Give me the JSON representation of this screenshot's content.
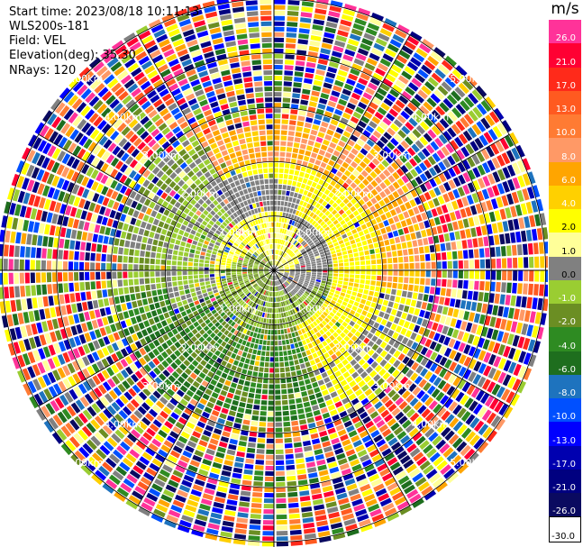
{
  "header": {
    "start_time": "Start time: 2023/08/18 10:11:13",
    "instrument": "WLS200s-181",
    "field": "Field: VEL",
    "elevation": "Elevation(deg): 35.30",
    "nrays": "NRays: 120"
  },
  "colorbar": {
    "unit": "m/s",
    "levels": [
      {
        "label": "26.0",
        "color": "#ff3399"
      },
      {
        "label": "21.0",
        "color": "#ff0033"
      },
      {
        "label": "17.0",
        "color": "#ff2a1a"
      },
      {
        "label": "13.0",
        "color": "#ff5a20"
      },
      {
        "label": "10.0",
        "color": "#ff7b33"
      },
      {
        "label": "8.0",
        "color": "#ff9966"
      },
      {
        "label": "6.0",
        "color": "#ffa500"
      },
      {
        "label": "4.0",
        "color": "#ffd000"
      },
      {
        "label": "2.0",
        "color": "#ffff00"
      },
      {
        "label": "1.0",
        "color": "#ffff99"
      },
      {
        "label": "0.0",
        "color": "#808080"
      },
      {
        "label": "-1.0",
        "color": "#9acd32"
      },
      {
        "label": "-2.0",
        "color": "#6b8e23"
      },
      {
        "label": "-4.0",
        "color": "#2e8b22"
      },
      {
        "label": "-6.0",
        "color": "#1e6e1e"
      },
      {
        "label": "-8.0",
        "color": "#1e73be"
      },
      {
        "label": "-10.0",
        "color": "#0050ff"
      },
      {
        "label": "-13.0",
        "color": "#0000ff"
      },
      {
        "label": "-17.0",
        "color": "#0000b0"
      },
      {
        "label": "-21.0",
        "color": "#000080"
      },
      {
        "label": "-26.0",
        "color": "#0a0a60"
      },
      {
        "label": "-30.0",
        "color": "#ffffff"
      }
    ]
  },
  "chart_data": {
    "type": "heatmap",
    "projection": "polar-ppi",
    "field": "VEL",
    "unit": "m/s",
    "nrays": 120,
    "elevation_deg": 35.3,
    "range_ring_labels": [
      "1.00km",
      "2.00km",
      "3.00km",
      "4.00km",
      "5.00km"
    ],
    "max_range_km": 5.0,
    "pattern": {
      "description_values": {
        "inner_ring_1km": "mixed 0.0 to 2.0 and -1.0 to -2.0 spiral",
        "north_east_mid": "2.0 to 6.0",
        "south_west_mid": "-4.0 to -8.0",
        "outer_beyond_3km": "noise across full scale"
      }
    }
  }
}
